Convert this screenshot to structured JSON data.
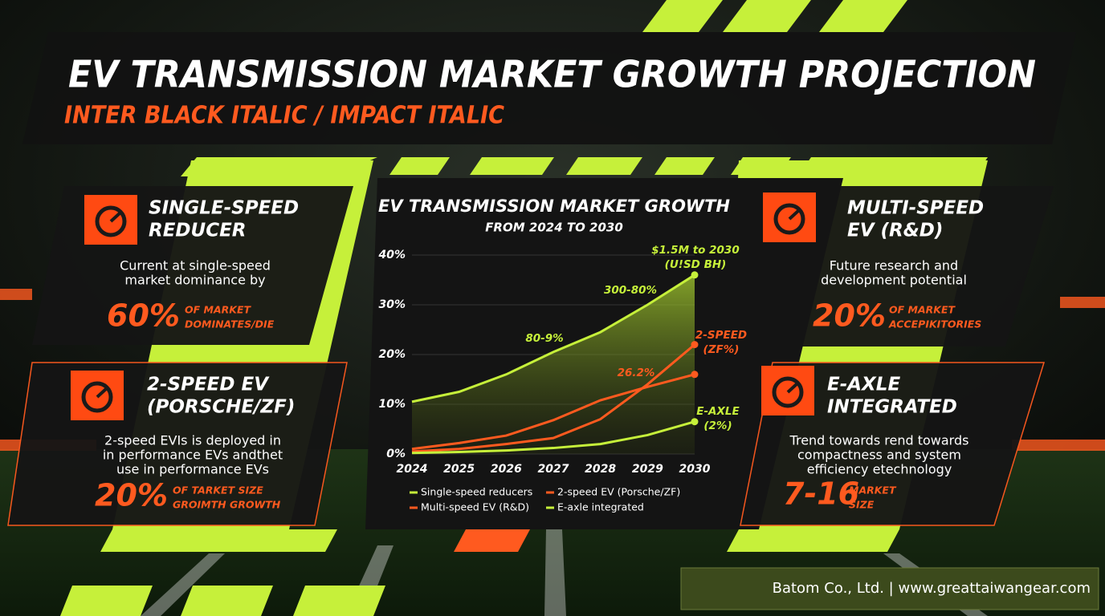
{
  "header": {
    "title": "EV TRANSMISSION MARKET GROWTH PROJECTION",
    "subtitle": "INTER BLACK ITALIC / IMPACT ITALIC"
  },
  "panels": [
    {
      "title": [
        "SINGLE-SPEED",
        "REDUCER"
      ],
      "body": [
        "Current at single-speed",
        "market dominance by"
      ],
      "stat": "60%",
      "stat_label": [
        "OF MARKET",
        "DOMINATES/DIE"
      ]
    },
    {
      "title": [
        "2-SPEED EV",
        "(PORSCHE/ZF)"
      ],
      "body": [
        "2-speed EVIs is deployed in",
        "in performance EVs andthet",
        "use in performance EVs"
      ],
      "stat": "20%",
      "stat_label": [
        "OF TARKET SIZE",
        "GROIMTH GROWTH"
      ]
    },
    {
      "title": [
        "MULTI-SPEED",
        "EV (R&D)"
      ],
      "body": [
        "Future research and",
        "development potential"
      ],
      "stat": "20%",
      "stat_label": [
        "OF MARKET",
        "ACCEPIKITORIES"
      ]
    },
    {
      "title": [
        "E-AXLE",
        "INTEGRATED"
      ],
      "body": [
        "Trend towards rend towards",
        "compactness and system",
        "efficiency etechnology"
      ],
      "stat": "7-16",
      "stat_label": [
        "MARKET",
        "SIZE"
      ]
    }
  ],
  "chart_data": {
    "type": "line",
    "title": "EV TRANSMISSION MARKET GROWTH",
    "subtitle": "FROM 2024 TO 2030",
    "categories": [
      "2024",
      "2025",
      "2026",
      "2027",
      "2028",
      "2029",
      "2030"
    ],
    "ylim": [
      0,
      40
    ],
    "yticks": [
      {
        "value": 0,
        "label": "0%"
      },
      {
        "value": 10,
        "label": "10%"
      },
      {
        "value": 20,
        "label": "20%"
      },
      {
        "value": 30,
        "label": "30%"
      },
      {
        "value": 40,
        "label": "40%"
      }
    ],
    "series": [
      {
        "name": "Single-speed reducers",
        "color": "#c6f03a",
        "fill": true,
        "values": [
          10.5,
          12.5,
          16,
          20.5,
          24.5,
          30,
          36
        ]
      },
      {
        "name": "2-speed EV (Porsche/ZF)",
        "color": "#ff5a1f",
        "fill": false,
        "values": [
          0.5,
          1,
          2,
          3.2,
          7,
          14,
          22
        ]
      },
      {
        "name": "Multi-speed EV (R&D)",
        "color": "#ff5a1f",
        "fill": false,
        "values": [
          1,
          2.2,
          3.7,
          6.8,
          10.8,
          13.5,
          16
        ]
      },
      {
        "name": "E-axle integrated",
        "color": "#c6f03a",
        "fill": false,
        "values": [
          0.2,
          0.4,
          0.7,
          1.2,
          2,
          3.8,
          6.5
        ]
      }
    ],
    "annotations": [
      {
        "text": [
          "$1.5M to 2030",
          "(U!SD BH)"
        ],
        "color": "#c6f03a"
      },
      {
        "text": [
          "300-80%"
        ],
        "color": "#c6f03a"
      },
      {
        "text": [
          "80-9%"
        ],
        "color": "#c6f03a"
      },
      {
        "text": [
          "26.2%"
        ],
        "color": "#ff5a1f"
      },
      {
        "text": [
          "2-SPEED",
          "(ZF%)"
        ],
        "color": "#ff5a1f"
      },
      {
        "text": [
          "E-AXLE",
          "(2%)"
        ],
        "color": "#c6f03a"
      }
    ]
  },
  "footer": "Batom Co., Ltd. | www.greattaiwangear.com"
}
